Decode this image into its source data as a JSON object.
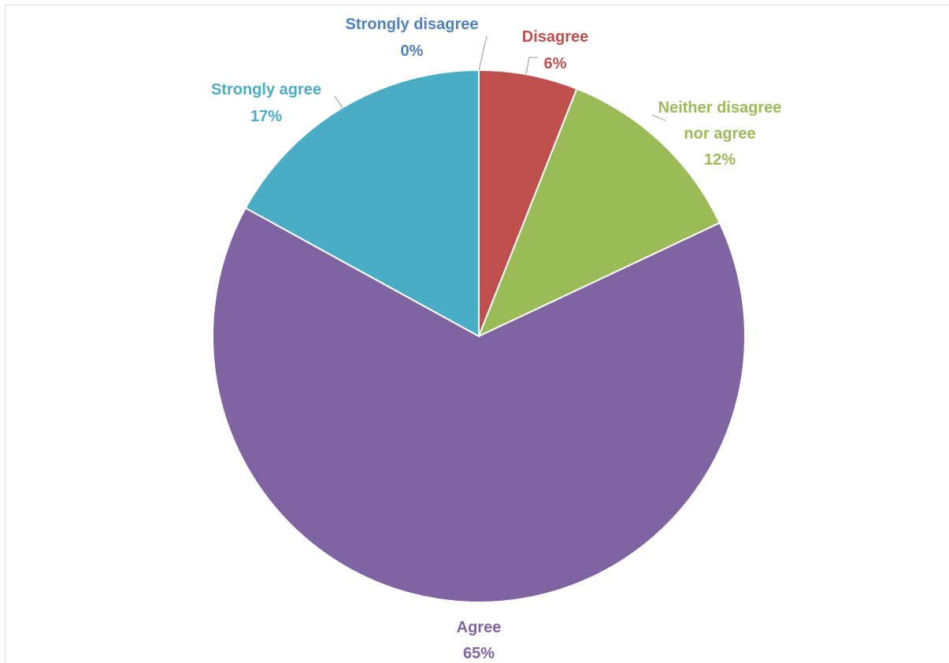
{
  "chart_data": {
    "type": "pie",
    "start_angle_deg": 0,
    "direction": "clockwise",
    "slices": [
      {
        "label": "Strongly disagree",
        "value": 0,
        "percent_label": "0%",
        "color": "#4F81BD",
        "label_color": "#4F81BD"
      },
      {
        "label": "Disagree",
        "value": 6,
        "percent_label": "6%",
        "color": "#C0504D",
        "label_color": "#C0504D"
      },
      {
        "label": "Neither disagree nor agree",
        "value": 12,
        "percent_label": "12%",
        "color": "#9BBB59",
        "label_color": "#9BBB59"
      },
      {
        "label": "Agree",
        "value": 65,
        "percent_label": "65%",
        "color": "#8064A2",
        "label_color": "#8064A2"
      },
      {
        "label": "Strongly agree",
        "value": 17,
        "percent_label": "17%",
        "color": "#4BACC6",
        "label_color": "#4BACC6"
      }
    ],
    "legend": "none",
    "leader_line_color": "#a6a6a6"
  }
}
